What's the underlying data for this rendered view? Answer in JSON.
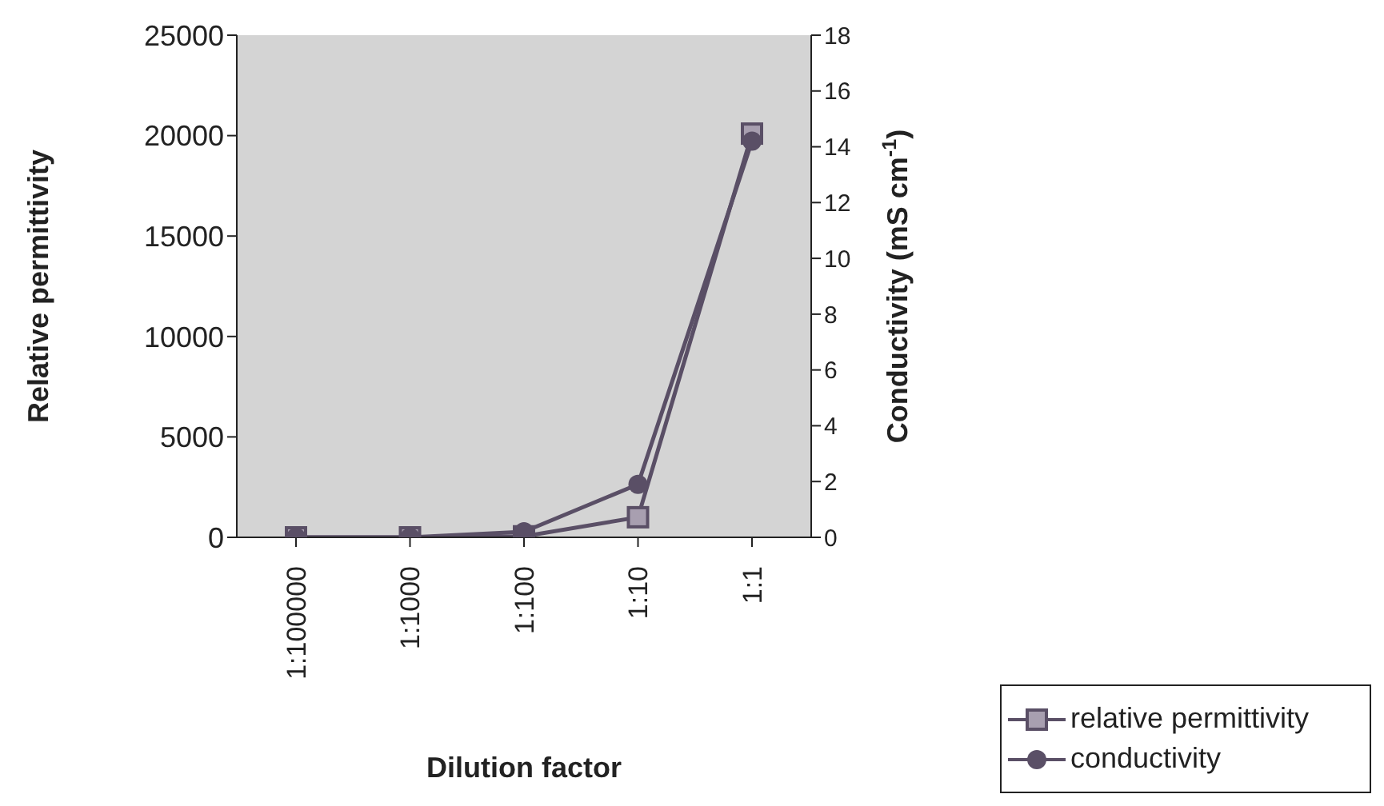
{
  "chart_data": {
    "type": "line",
    "xlabel": "Dilution factor",
    "ylabel": "Relative permittivity",
    "y2label": "Conductivity (mS cm$^{-1}$)",
    "categories": [
      "1:100000",
      "1:1000",
      "1:100",
      "1:10",
      "1:1"
    ],
    "series": [
      {
        "name": "relative permittivity",
        "color": "#5a4f66",
        "marker": "square",
        "values": [
          0,
          0,
          50,
          1000,
          20100
        ]
      },
      {
        "name": "conductivity",
        "color": "#5a4f66",
        "marker": "circle",
        "axis": "y2",
        "values": [
          0,
          0,
          0.2,
          1.9,
          14.2
        ]
      }
    ],
    "ylim": [
      0,
      25000
    ],
    "yticks": [
      0,
      5000,
      10000,
      15000,
      20000,
      25000
    ],
    "y2lim": [
      0,
      18
    ],
    "y2ticks": [
      0,
      2,
      4,
      6,
      8,
      10,
      12,
      14,
      16,
      18
    ],
    "grid": false,
    "legend": "bottom right",
    "line_style": "solid"
  }
}
